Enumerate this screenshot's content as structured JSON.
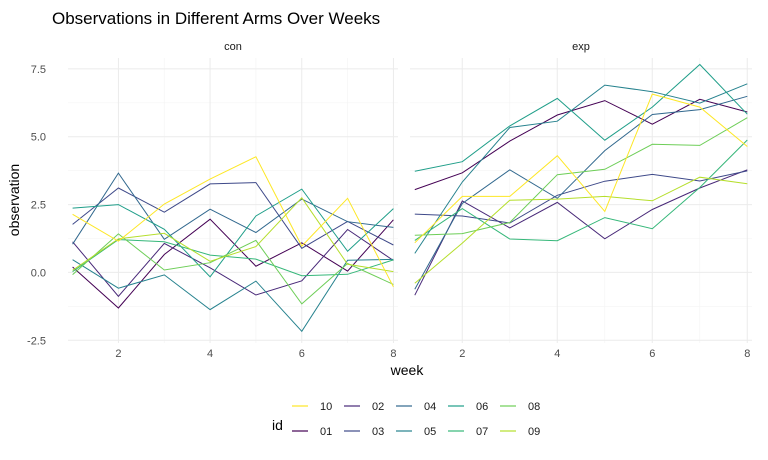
{
  "chart_data": {
    "type": "line",
    "title": "Observations in Different Arms Over Weeks",
    "xlabel": "week",
    "ylabel": "observation",
    "x": [
      1,
      2,
      3,
      4,
      5,
      6,
      7,
      8
    ],
    "x_ticks": [
      2,
      4,
      6,
      8
    ],
    "y_ticks": [
      -2.5,
      0.0,
      2.5,
      5.0,
      7.5
    ],
    "y_tick_labels": [
      "-2.5",
      "0.0",
      "2.5",
      "5.0",
      "7.5"
    ],
    "xlim": [
      0.9,
      8.1
    ],
    "ylim": [
      -2.6,
      7.9
    ],
    "grid": true,
    "legend": {
      "title": "id",
      "position": "bottom"
    },
    "colors": {
      "01": "#440154",
      "02": "#482878",
      "03": "#3e4989",
      "04": "#31688e",
      "05": "#26828e",
      "06": "#1f9e89",
      "07": "#35b779",
      "08": "#6ece58",
      "09": "#b5de2b",
      "10": "#fde725"
    },
    "panels": [
      {
        "name": "con",
        "series": [
          {
            "name": "01",
            "values": [
              0.2,
              -1.31,
              0.66,
              1.96,
              0.23,
              1.09,
              0.05,
              1.94
            ]
          },
          {
            "name": "02",
            "values": [
              1.13,
              -0.88,
              1.07,
              0.17,
              -0.83,
              -0.31,
              1.58,
              0.44
            ]
          },
          {
            "name": "03",
            "values": [
              1.77,
              3.11,
              2.22,
              3.26,
              3.31,
              0.89,
              1.88,
              1.01
            ]
          },
          {
            "name": "04",
            "values": [
              1.04,
              3.66,
              1.22,
              2.33,
              1.47,
              2.7,
              1.87,
              1.66
            ]
          },
          {
            "name": "05",
            "values": [
              0.47,
              -0.58,
              -0.09,
              -1.37,
              -0.32,
              -2.17,
              0.45,
              0.48
            ]
          },
          {
            "name": "06",
            "values": [
              2.37,
              2.5,
              1.59,
              -0.16,
              2.08,
              3.07,
              0.78,
              2.35
            ]
          },
          {
            "name": "07",
            "values": [
              0.03,
              1.21,
              1.13,
              0.64,
              0.49,
              -0.12,
              -0.07,
              0.46
            ]
          },
          {
            "name": "08",
            "values": [
              -0.08,
              1.42,
              0.09,
              0.36,
              1.18,
              -1.16,
              0.33,
              -0.44
            ]
          },
          {
            "name": "09",
            "values": [
              0.08,
              1.24,
              1.44,
              0.41,
              0.95,
              2.75,
              0.3,
              0.03
            ]
          },
          {
            "name": "10",
            "values": [
              2.14,
              1.15,
              2.52,
              3.44,
              4.26,
              0.97,
              2.73,
              -0.53
            ]
          }
        ]
      },
      {
        "name": "exp",
        "series": [
          {
            "name": "01",
            "values": [
              3.05,
              3.67,
              4.84,
              5.8,
              6.33,
              5.46,
              6.38,
              5.91
            ]
          },
          {
            "name": "02",
            "values": [
              -0.84,
              2.63,
              1.64,
              2.58,
              1.24,
              2.32,
              3.11,
              3.78
            ]
          },
          {
            "name": "03",
            "values": [
              2.15,
              2.08,
              1.82,
              2.84,
              3.36,
              3.61,
              3.37,
              3.74
            ]
          },
          {
            "name": "04",
            "values": [
              -0.62,
              2.54,
              3.78,
              2.73,
              4.49,
              5.82,
              6.0,
              6.49
            ]
          },
          {
            "name": "05",
            "values": [
              0.7,
              3.33,
              5.34,
              5.57,
              6.9,
              6.66,
              6.24,
              6.95
            ]
          },
          {
            "name": "06",
            "values": [
              3.73,
              4.08,
              5.4,
              6.41,
              4.87,
              6.09,
              7.66,
              5.83
            ]
          },
          {
            "name": "07",
            "values": [
              1.18,
              2.35,
              1.23,
              1.17,
              2.02,
              1.61,
              3.13,
              4.88
            ]
          },
          {
            "name": "08",
            "values": [
              1.37,
              1.43,
              1.84,
              3.6,
              3.8,
              4.72,
              4.68,
              5.7
            ]
          },
          {
            "name": "09",
            "values": [
              -0.4,
              1.08,
              2.66,
              2.7,
              2.8,
              2.64,
              3.51,
              3.27
            ]
          },
          {
            "name": "10",
            "values": [
              1.09,
              2.8,
              2.8,
              4.3,
              2.25,
              6.57,
              6.09,
              4.64
            ]
          }
        ]
      }
    ]
  }
}
